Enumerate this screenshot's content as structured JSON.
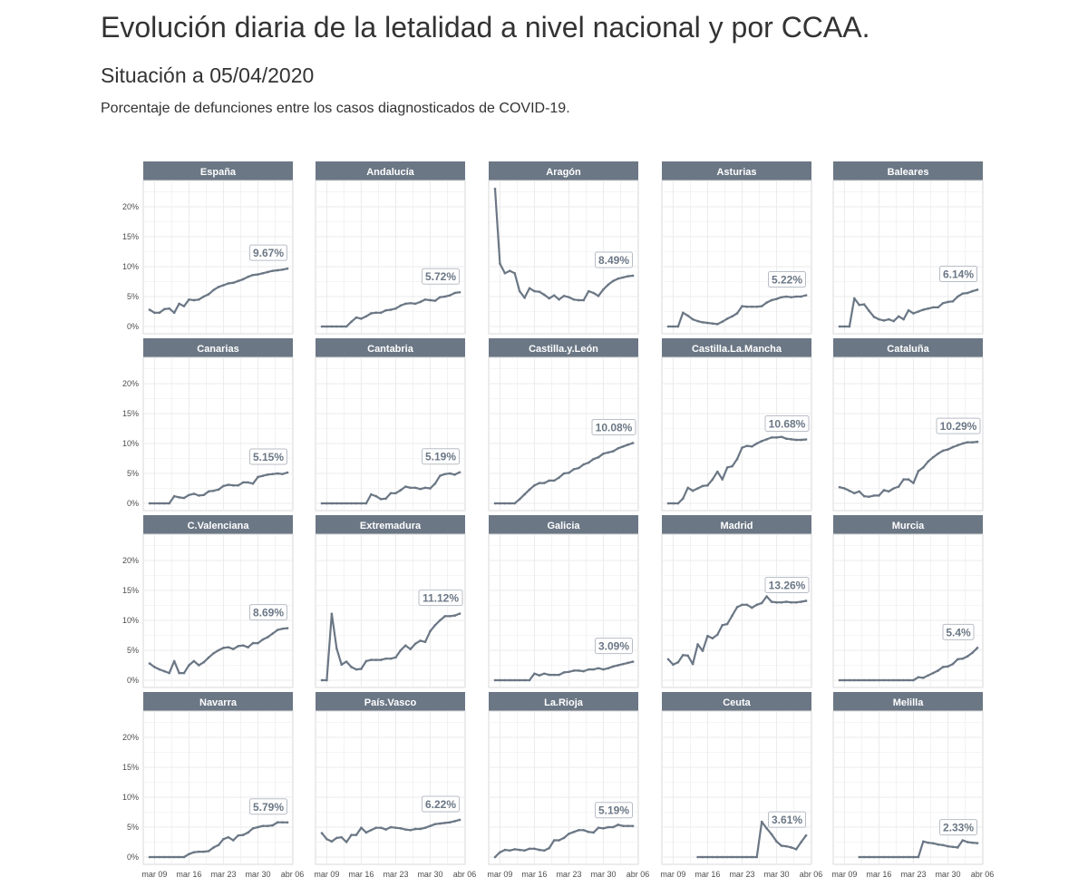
{
  "header": {
    "title": "Evolución diaria de la letalidad a nivel nacional y por CCAA.",
    "subtitle": "Situación a 05/04/2020",
    "description": "Porcentaje de defunciones entre los casos diagnosticados de COVID-19."
  },
  "chart_data": {
    "type": "line",
    "layout": "small-multiples 5x4",
    "x_start": "2020-03-08",
    "x_end": "2020-04-05",
    "x_ticks": [
      "mar 09",
      "mar 16",
      "mar 23",
      "mar 30",
      "abr 06"
    ],
    "y_ticks": [
      "0%",
      "5%",
      "10%",
      "15%",
      "20%"
    ],
    "ylim": [
      0,
      23
    ],
    "grid": true,
    "colors": {
      "line": "#6b7785",
      "strip": "#6b7785",
      "grid": "#ebebeb"
    },
    "panels": [
      {
        "name": "España",
        "label": "9.67%",
        "values": [
          2.8,
          2.3,
          2.3,
          2.9,
          3.0,
          2.3,
          3.8,
          3.4,
          4.5,
          4.4,
          4.5,
          5.0,
          5.4,
          6.1,
          6.6,
          6.9,
          7.2,
          7.3,
          7.6,
          7.9,
          8.3,
          8.6,
          8.7,
          8.9,
          9.1,
          9.3,
          9.4,
          9.5,
          9.67
        ]
      },
      {
        "name": "Andalucía",
        "label": "5.72%",
        "values": [
          0,
          0,
          0,
          0,
          0,
          0,
          0.8,
          1.5,
          1.3,
          1.7,
          2.2,
          2.3,
          2.3,
          2.7,
          2.8,
          3.0,
          3.5,
          3.8,
          3.9,
          3.8,
          4.1,
          4.5,
          4.4,
          4.3,
          4.9,
          5.0,
          5.2,
          5.6,
          5.72
        ]
      },
      {
        "name": "Aragón",
        "label": "8.49%",
        "values": [
          23,
          10.5,
          8.9,
          9.3,
          8.9,
          5.9,
          4.8,
          6.4,
          5.9,
          5.8,
          5.3,
          4.7,
          5.2,
          4.5,
          5.1,
          4.9,
          4.5,
          4.4,
          4.4,
          5.9,
          5.6,
          5.1,
          6.2,
          7.0,
          7.6,
          8.0,
          8.2,
          8.4,
          8.49
        ]
      },
      {
        "name": "Asturias",
        "label": "5.22%",
        "values": [
          0,
          0,
          0,
          2.3,
          1.8,
          1.2,
          0.9,
          0.7,
          0.6,
          0.5,
          0.4,
          0.8,
          1.3,
          1.7,
          2.2,
          3.4,
          3.3,
          3.3,
          3.3,
          3.4,
          4.0,
          4.4,
          4.6,
          4.9,
          5.0,
          4.9,
          5.0,
          5.0,
          5.22
        ]
      },
      {
        "name": "Baleares",
        "label": "6.14%",
        "values": [
          0,
          0,
          0,
          4.7,
          3.6,
          3.7,
          2.6,
          1.6,
          1.2,
          1.0,
          1.2,
          0.9,
          1.7,
          1.2,
          2.7,
          2.2,
          2.5,
          2.8,
          3.0,
          3.2,
          3.2,
          3.9,
          4.1,
          4.2,
          5.0,
          5.5,
          5.6,
          5.9,
          6.14
        ]
      },
      {
        "name": "Canarias",
        "label": "5.15%",
        "values": [
          0,
          0,
          0,
          0,
          0,
          1.2,
          1.0,
          0.9,
          1.4,
          1.6,
          1.3,
          1.4,
          2.0,
          2.1,
          2.3,
          2.9,
          3.1,
          3.0,
          3.0,
          3.5,
          3.5,
          3.3,
          4.4,
          4.6,
          4.8,
          4.9,
          5.0,
          4.9,
          5.15
        ]
      },
      {
        "name": "Cantabria",
        "label": "5.19%",
        "values": [
          0,
          0,
          0,
          0,
          0,
          0,
          0,
          0,
          0,
          0,
          1.5,
          1.2,
          0.7,
          0.8,
          1.7,
          1.7,
          2.2,
          2.8,
          2.6,
          2.6,
          2.4,
          2.6,
          2.5,
          3.3,
          4.6,
          4.9,
          5.0,
          4.8,
          5.19
        ]
      },
      {
        "name": "Castilla.y.León",
        "label": "10.08%",
        "values": [
          0,
          0,
          0,
          0,
          0,
          0.7,
          1.5,
          2.3,
          3.0,
          3.4,
          3.4,
          3.8,
          3.8,
          4.3,
          5.0,
          5.1,
          5.7,
          5.9,
          6.5,
          6.8,
          7.4,
          7.7,
          8.3,
          8.5,
          8.7,
          9.2,
          9.5,
          9.8,
          10.08
        ]
      },
      {
        "name": "Castilla.La.Mancha",
        "label": "10.68%",
        "values": [
          0,
          0,
          0,
          0.8,
          2.6,
          2.1,
          2.5,
          2.9,
          3.0,
          4.0,
          5.3,
          4.0,
          6.0,
          6.2,
          7.4,
          9.3,
          9.6,
          9.5,
          10.0,
          10.4,
          10.7,
          11.0,
          11.0,
          11.1,
          10.8,
          10.7,
          10.6,
          10.6,
          10.68
        ]
      },
      {
        "name": "Cataluña",
        "label": "10.29%",
        "values": [
          2.7,
          2.5,
          2.1,
          1.7,
          2.0,
          1.2,
          1.1,
          1.3,
          1.3,
          2.2,
          2.0,
          2.5,
          2.8,
          4.0,
          4.0,
          3.4,
          5.4,
          6.0,
          7.0,
          7.7,
          8.3,
          8.8,
          9.0,
          9.4,
          9.7,
          10.0,
          10.2,
          10.2,
          10.29
        ]
      },
      {
        "name": "C.Valenciana",
        "label": "8.69%",
        "values": [
          2.8,
          2.2,
          1.8,
          1.5,
          1.2,
          3.2,
          1.2,
          1.2,
          2.5,
          3.2,
          2.5,
          3.0,
          3.8,
          4.5,
          5.0,
          5.4,
          5.5,
          5.2,
          5.7,
          5.8,
          5.5,
          6.2,
          6.2,
          6.8,
          7.2,
          7.8,
          8.4,
          8.6,
          8.69
        ]
      },
      {
        "name": "Extremadura",
        "label": "11.12%",
        "values": [
          0,
          0,
          11.1,
          5.3,
          2.6,
          3.1,
          2.2,
          1.8,
          1.9,
          3.2,
          3.4,
          3.4,
          3.4,
          3.6,
          3.6,
          3.8,
          5.0,
          5.8,
          5.2,
          6.1,
          6.6,
          6.4,
          8.2,
          9.2,
          10.0,
          10.7,
          10.7,
          10.8,
          11.12
        ]
      },
      {
        "name": "Galicia",
        "label": "3.09%",
        "values": [
          0,
          0,
          0,
          0,
          0,
          0,
          0,
          0,
          1.1,
          0.8,
          1.1,
          0.9,
          0.9,
          0.9,
          1.3,
          1.4,
          1.6,
          1.6,
          1.5,
          1.8,
          1.8,
          2.0,
          1.8,
          2.0,
          2.3,
          2.5,
          2.7,
          2.9,
          3.09
        ]
      },
      {
        "name": "Madrid",
        "label": "13.26%",
        "values": [
          3.5,
          2.6,
          3.0,
          4.2,
          4.1,
          2.7,
          6.0,
          4.9,
          7.4,
          7.0,
          7.6,
          9.2,
          9.4,
          10.8,
          12.2,
          12.6,
          12.6,
          12.1,
          12.6,
          12.9,
          14.0,
          13.1,
          13.0,
          13.0,
          13.1,
          13.0,
          13.0,
          13.1,
          13.26
        ]
      },
      {
        "name": "Murcia",
        "label": "5.4%",
        "values": [
          0,
          0,
          0,
          0,
          0,
          0,
          0,
          0,
          0,
          0,
          0,
          0,
          0,
          0,
          0,
          0,
          0.5,
          0.4,
          0.8,
          1.2,
          1.6,
          2.2,
          2.3,
          2.7,
          3.5,
          3.6,
          4.0,
          4.6,
          5.4
        ]
      },
      {
        "name": "Navarra",
        "label": "5.79%",
        "values": [
          0,
          0,
          0,
          0,
          0,
          0,
          0,
          0,
          0.5,
          0.8,
          0.9,
          0.9,
          1.0,
          1.6,
          2.0,
          3.0,
          3.3,
          2.8,
          3.6,
          3.7,
          4.1,
          4.8,
          5.0,
          5.2,
          5.2,
          5.3,
          5.8,
          5.8,
          5.79
        ]
      },
      {
        "name": "País.Vasco",
        "label": "6.22%",
        "values": [
          4.0,
          3.0,
          2.6,
          3.2,
          3.3,
          2.5,
          3.7,
          3.7,
          4.9,
          4.1,
          4.5,
          4.9,
          4.9,
          4.6,
          5.0,
          4.9,
          4.8,
          4.6,
          4.5,
          4.7,
          4.7,
          4.9,
          5.2,
          5.5,
          5.6,
          5.7,
          5.8,
          6.0,
          6.22
        ]
      },
      {
        "name": "La.Rioja",
        "label": "5.19%",
        "values": [
          0,
          0.8,
          1.2,
          1.1,
          1.3,
          1.2,
          1.1,
          1.4,
          1.4,
          1.2,
          1.1,
          1.5,
          2.8,
          2.8,
          3.2,
          3.9,
          4.2,
          4.5,
          4.5,
          4.2,
          4.1,
          4.9,
          4.8,
          5.0,
          5.0,
          5.4,
          5.2,
          5.2,
          5.19
        ]
      },
      {
        "name": "Ceuta",
        "label": "3.61%",
        "values": [
          null,
          null,
          null,
          null,
          null,
          null,
          0,
          0,
          0,
          0,
          0,
          0,
          0,
          0,
          0,
          0,
          0,
          0,
          0,
          5.9,
          4.8,
          3.8,
          2.6,
          1.9,
          1.8,
          1.6,
          1.3,
          2.5,
          3.61
        ]
      },
      {
        "name": "Melilla",
        "label": "2.33%",
        "values": [
          null,
          null,
          null,
          null,
          0,
          0,
          0,
          0,
          0,
          0,
          0,
          0,
          0,
          0,
          0,
          0,
          0,
          2.6,
          2.4,
          2.3,
          2.1,
          2.0,
          1.8,
          1.7,
          1.6,
          2.8,
          2.5,
          2.4,
          2.33
        ]
      }
    ]
  }
}
